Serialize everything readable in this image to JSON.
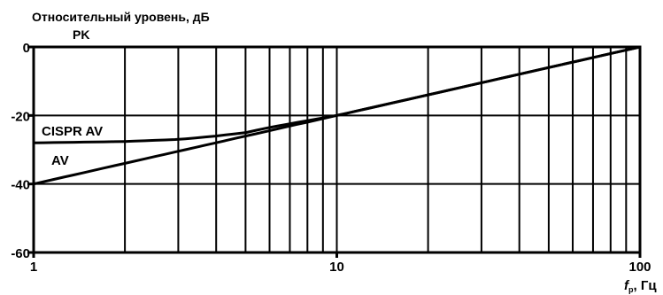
{
  "chart_data": {
    "type": "line",
    "title": "Относительный уровень, дБ",
    "xlabel_var": "f",
    "xlabel_sub": "p",
    "xlabel_unit": ", Гц",
    "x_scale": "log",
    "xlim": [
      1,
      100
    ],
    "ylim": [
      -60,
      0
    ],
    "grid": true,
    "x_ticks": [
      {
        "value": 1,
        "label": "1"
      },
      {
        "value": 10,
        "label": "10"
      },
      {
        "value": 100,
        "label": "100"
      }
    ],
    "y_ticks": [
      {
        "value": 0,
        "label": "0"
      },
      {
        "value": -20,
        "label": "-20"
      },
      {
        "value": -40,
        "label": "-40"
      },
      {
        "value": -60,
        "label": "-60"
      }
    ],
    "series": [
      {
        "name": "PK",
        "x": [
          1,
          100
        ],
        "y": [
          0,
          0
        ]
      },
      {
        "name": "CISPR AV",
        "x": [
          1,
          2,
          3,
          4,
          5,
          6,
          8,
          10,
          20,
          50,
          100
        ],
        "y": [
          -28,
          -27.6,
          -27,
          -26,
          -25,
          -23.5,
          -21.5,
          -20,
          -14,
          -6,
          0
        ]
      },
      {
        "name": "AV",
        "x": [
          1,
          10,
          100
        ],
        "y": [
          -40,
          -20,
          0
        ]
      }
    ]
  }
}
